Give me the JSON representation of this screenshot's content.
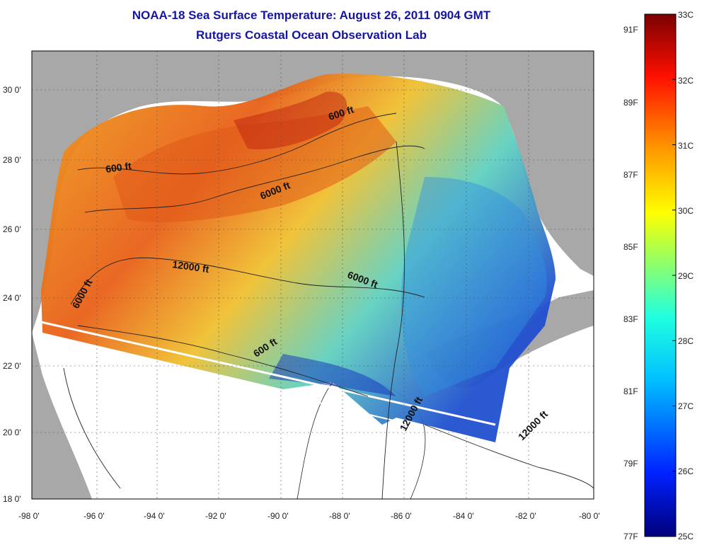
{
  "header": {
    "title": "NOAA-18 Sea Surface Temperature:  August 26, 2011 0904 GMT",
    "subtitle": "Rutgers Coastal Ocean Observation Lab"
  },
  "axes": {
    "x_ticks": [
      "-98 0'",
      "-96 0'",
      "-94 0'",
      "-92 0'",
      "-90 0'",
      "-88 0'",
      "-86 0'",
      "-84 0'",
      "-82 0'",
      "-80 0'"
    ],
    "y_ticks": [
      "30 0'",
      "28 0'",
      "26 0'",
      "24 0'",
      "22 0'",
      "20 0'",
      "18 0'"
    ],
    "lon_range": [
      -98,
      -80
    ],
    "lat_range": [
      18,
      31
    ]
  },
  "contour_labels": [
    {
      "text": "600 ft"
    },
    {
      "text": "600 ft"
    },
    {
      "text": "6000 ft"
    },
    {
      "text": "12000 ft"
    },
    {
      "text": "6000 ft"
    },
    {
      "text": "6000 ft"
    },
    {
      "text": "600 ft"
    },
    {
      "text": "12000 ft"
    },
    {
      "text": "12000 ft"
    }
  ],
  "colorbar": {
    "celsius_labels": [
      "33C",
      "32C",
      "31C",
      "30C",
      "29C",
      "28C",
      "27C",
      "26C",
      "25C"
    ],
    "fahrenheit_labels": [
      "91F",
      "89F",
      "87F",
      "85F",
      "83F",
      "81F",
      "79F",
      "77F"
    ],
    "celsius_range": [
      25,
      33
    ]
  },
  "colors": {
    "land": "#a8a8a8",
    "title": "#1515a0",
    "warm": "#e8601a",
    "hot": "#b01010",
    "mid": "#e8c020",
    "cool": "#40c0e0",
    "cold": "#1030c0"
  }
}
